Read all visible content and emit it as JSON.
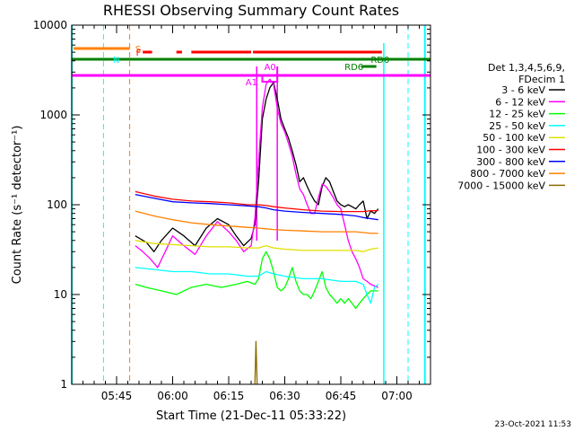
{
  "chart_data": {
    "type": "line",
    "title": "RHESSI Observing Summary Count Rates",
    "xlabel": "Start Time (21-Dec-11 05:33:22)",
    "ylabel": "Count Rate (s⁻¹ detector⁻¹)",
    "yscale": "log",
    "ylim": [
      1,
      10000
    ],
    "xlim_minutes": [
      0,
      96
    ],
    "x_ticks": [
      {
        "min": 12,
        "label": "05:45"
      },
      {
        "min": 27,
        "label": "06:00"
      },
      {
        "min": 42,
        "label": "06:15"
      },
      {
        "min": 57,
        "label": "06:30"
      },
      {
        "min": 72,
        "label": "06:45"
      },
      {
        "min": 87,
        "label": "07:00"
      }
    ],
    "y_ticks": [
      {
        "v": 1,
        "label": "1"
      },
      {
        "v": 10,
        "label": "10"
      },
      {
        "v": 100,
        "label": "100"
      },
      {
        "v": 1000,
        "label": "1000"
      },
      {
        "v": 10000,
        "label": "10000"
      }
    ],
    "legend_header": [
      "Det 1,3,4,5,6,9,",
      "FDecim 1"
    ],
    "legend_placement": "right",
    "series": [
      {
        "name": "3 - 6 keV",
        "color": "#000000",
        "points": [
          [
            17,
            45
          ],
          [
            20,
            38
          ],
          [
            22,
            30
          ],
          [
            24,
            40
          ],
          [
            27,
            55
          ],
          [
            30,
            45
          ],
          [
            33,
            35
          ],
          [
            36,
            55
          ],
          [
            39,
            70
          ],
          [
            42,
            60
          ],
          [
            44,
            45
          ],
          [
            46,
            35
          ],
          [
            48,
            42
          ],
          [
            49,
            60
          ],
          [
            50,
            180
          ],
          [
            51,
            900
          ],
          [
            52,
            1500
          ],
          [
            53,
            2000
          ],
          [
            54,
            2300
          ],
          [
            55,
            1500
          ],
          [
            56,
            900
          ],
          [
            57,
            700
          ],
          [
            58,
            550
          ],
          [
            59,
            400
          ],
          [
            60,
            280
          ],
          [
            61,
            180
          ],
          [
            62,
            200
          ],
          [
            63,
            160
          ],
          [
            64,
            130
          ],
          [
            65,
            110
          ],
          [
            66,
            100
          ],
          [
            67,
            160
          ],
          [
            68,
            200
          ],
          [
            69,
            180
          ],
          [
            70,
            140
          ],
          [
            71,
            110
          ],
          [
            72,
            100
          ],
          [
            73,
            95
          ],
          [
            74,
            100
          ],
          [
            75,
            95
          ],
          [
            76,
            90
          ],
          [
            77,
            100
          ],
          [
            78,
            110
          ],
          [
            79,
            70
          ],
          [
            80,
            85
          ],
          [
            81,
            80
          ],
          [
            82,
            90
          ]
        ]
      },
      {
        "name": "6 - 12 keV",
        "color": "#ff00ff",
        "points": [
          [
            17,
            35
          ],
          [
            19,
            30
          ],
          [
            21,
            25
          ],
          [
            23,
            20
          ],
          [
            25,
            30
          ],
          [
            27,
            45
          ],
          [
            30,
            35
          ],
          [
            33,
            28
          ],
          [
            36,
            45
          ],
          [
            39,
            65
          ],
          [
            42,
            50
          ],
          [
            44,
            40
          ],
          [
            46,
            30
          ],
          [
            48,
            35
          ],
          [
            49,
            70
          ],
          [
            50,
            300
          ],
          [
            51,
            1200
          ],
          [
            52,
            2200
          ],
          [
            53,
            2500
          ],
          [
            54,
            2200
          ],
          [
            55,
            1200
          ],
          [
            56,
            800
          ],
          [
            57,
            650
          ],
          [
            58,
            480
          ],
          [
            59,
            350
          ],
          [
            60,
            220
          ],
          [
            61,
            150
          ],
          [
            62,
            130
          ],
          [
            63,
            100
          ],
          [
            64,
            80
          ],
          [
            65,
            80
          ],
          [
            66,
            120
          ],
          [
            67,
            170
          ],
          [
            68,
            160
          ],
          [
            69,
            140
          ],
          [
            70,
            120
          ],
          [
            71,
            100
          ],
          [
            72,
            90
          ],
          [
            73,
            60
          ],
          [
            74,
            40
          ],
          [
            75,
            30
          ],
          [
            76,
            25
          ],
          [
            77,
            20
          ],
          [
            78,
            15
          ],
          [
            79,
            14
          ],
          [
            80,
            13
          ],
          [
            82,
            12
          ]
        ]
      },
      {
        "name": "12 - 25 keV",
        "color": "#00ff00",
        "points": [
          [
            17,
            13
          ],
          [
            20,
            12
          ],
          [
            24,
            11
          ],
          [
            28,
            10
          ],
          [
            32,
            12
          ],
          [
            36,
            13
          ],
          [
            40,
            12
          ],
          [
            44,
            13
          ],
          [
            47,
            14
          ],
          [
            49,
            13
          ],
          [
            50,
            15
          ],
          [
            51,
            25
          ],
          [
            52,
            30
          ],
          [
            53,
            25
          ],
          [
            54,
            18
          ],
          [
            55,
            12
          ],
          [
            56,
            11
          ],
          [
            57,
            12
          ],
          [
            58,
            15
          ],
          [
            59,
            20
          ],
          [
            60,
            14
          ],
          [
            61,
            11
          ],
          [
            62,
            10
          ],
          [
            63,
            10
          ],
          [
            64,
            9
          ],
          [
            65,
            11
          ],
          [
            66,
            14
          ],
          [
            67,
            18
          ],
          [
            68,
            12
          ],
          [
            69,
            10
          ],
          [
            70,
            9
          ],
          [
            71,
            8
          ],
          [
            72,
            9
          ],
          [
            73,
            8
          ],
          [
            74,
            9
          ],
          [
            75,
            8
          ],
          [
            76,
            7
          ],
          [
            77,
            8
          ],
          [
            78,
            9
          ],
          [
            79,
            10
          ],
          [
            80,
            11
          ],
          [
            82,
            11
          ]
        ]
      },
      {
        "name": "25 - 50 keV",
        "color": "#00ffff",
        "points": [
          [
            17,
            20
          ],
          [
            22,
            19
          ],
          [
            27,
            18
          ],
          [
            32,
            18
          ],
          [
            37,
            17
          ],
          [
            42,
            17
          ],
          [
            47,
            16
          ],
          [
            50,
            16
          ],
          [
            52,
            18
          ],
          [
            54,
            17
          ],
          [
            57,
            16
          ],
          [
            62,
            15
          ],
          [
            67,
            15
          ],
          [
            72,
            14
          ],
          [
            76,
            14
          ],
          [
            78,
            13
          ],
          [
            79,
            10
          ],
          [
            80,
            8
          ],
          [
            81,
            12
          ],
          [
            82,
            13
          ]
        ]
      },
      {
        "name": "50 - 100 keV",
        "color": "#e0e000",
        "points": [
          [
            17,
            40
          ],
          [
            22,
            37
          ],
          [
            27,
            36
          ],
          [
            32,
            35
          ],
          [
            37,
            34
          ],
          [
            42,
            34
          ],
          [
            47,
            33
          ],
          [
            50,
            33
          ],
          [
            52,
            35
          ],
          [
            54,
            33
          ],
          [
            57,
            32
          ],
          [
            62,
            31
          ],
          [
            67,
            31
          ],
          [
            72,
            31
          ],
          [
            76,
            31
          ],
          [
            78,
            30
          ],
          [
            80,
            32
          ],
          [
            82,
            33
          ]
        ]
      },
      {
        "name": "100 - 300 keV",
        "color": "#ff0000",
        "points": [
          [
            17,
            140
          ],
          [
            22,
            125
          ],
          [
            27,
            115
          ],
          [
            32,
            110
          ],
          [
            37,
            108
          ],
          [
            42,
            105
          ],
          [
            47,
            100
          ],
          [
            50,
            100
          ],
          [
            52,
            98
          ],
          [
            54,
            95
          ],
          [
            57,
            92
          ],
          [
            62,
            88
          ],
          [
            67,
            85
          ],
          [
            72,
            84
          ],
          [
            76,
            84
          ],
          [
            78,
            84
          ],
          [
            80,
            86
          ],
          [
            82,
            86
          ]
        ]
      },
      {
        "name": "300 - 800 keV",
        "color": "#0000ff",
        "points": [
          [
            17,
            130
          ],
          [
            22,
            118
          ],
          [
            27,
            108
          ],
          [
            32,
            105
          ],
          [
            37,
            103
          ],
          [
            42,
            100
          ],
          [
            47,
            97
          ],
          [
            50,
            95
          ],
          [
            52,
            92
          ],
          [
            54,
            88
          ],
          [
            57,
            85
          ],
          [
            62,
            82
          ],
          [
            67,
            80
          ],
          [
            72,
            78
          ],
          [
            76,
            75
          ],
          [
            78,
            72
          ],
          [
            80,
            70
          ],
          [
            82,
            68
          ]
        ]
      },
      {
        "name": "800 - 7000 keV",
        "color": "#ff8000",
        "points": [
          [
            17,
            85
          ],
          [
            22,
            75
          ],
          [
            27,
            68
          ],
          [
            32,
            63
          ],
          [
            37,
            60
          ],
          [
            42,
            58
          ],
          [
            47,
            56
          ],
          [
            50,
            55
          ],
          [
            52,
            54
          ],
          [
            54,
            53
          ],
          [
            57,
            52
          ],
          [
            62,
            51
          ],
          [
            67,
            50
          ],
          [
            72,
            50
          ],
          [
            76,
            50
          ],
          [
            78,
            49
          ],
          [
            80,
            48
          ],
          [
            82,
            48
          ]
        ]
      },
      {
        "name": "7000 - 15000 keV",
        "color": "#8b6b00",
        "points": [
          [
            49,
            1
          ],
          [
            49.3,
            3
          ],
          [
            49.6,
            1
          ]
        ]
      }
    ],
    "status_bars": [
      {
        "label": "S",
        "color": "#ff8000",
        "level": 0.935
      },
      {
        "label": "N",
        "color": "#00ffff",
        "level": 0.835
      },
      {
        "label": "F",
        "color": "#ff0000",
        "level": 0.67
      },
      {
        "label": "RD0",
        "color": "#008000",
        "level": 0.6
      },
      {
        "label": "RD6",
        "color": "#008000",
        "level": 0.57
      },
      {
        "label": "A1",
        "color": "#ff00ff",
        "level": 0.5
      },
      {
        "label": "A0",
        "color": "#ff00ff",
        "level": 0.5
      }
    ],
    "footer_timestamp": "23-Oct-2021 11:53"
  }
}
